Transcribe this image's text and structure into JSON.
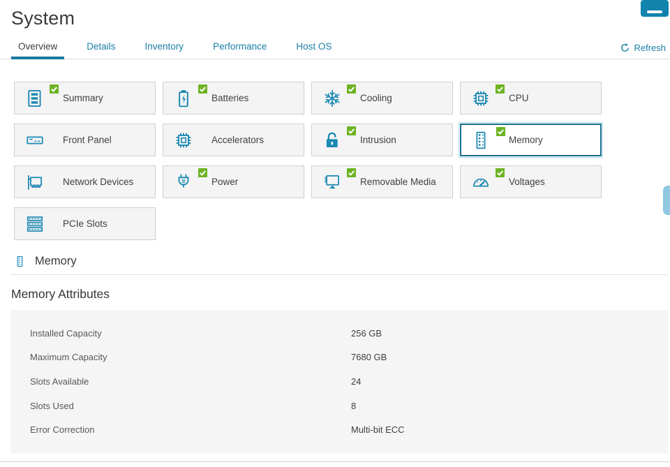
{
  "page": {
    "title": "System"
  },
  "header": {
    "menu_icon": "hamburger-icon",
    "refresh_label": "Refresh",
    "refresh_icon": "refresh-icon"
  },
  "tabs": [
    {
      "label": "Overview",
      "active": true
    },
    {
      "label": "Details",
      "active": false
    },
    {
      "label": "Inventory",
      "active": false
    },
    {
      "label": "Performance",
      "active": false
    },
    {
      "label": "Host OS",
      "active": false
    }
  ],
  "tiles": [
    {
      "label": "Summary",
      "icon": "summary-icon",
      "status_ok": true,
      "selected": false
    },
    {
      "label": "Batteries",
      "icon": "battery-icon",
      "status_ok": true,
      "selected": false
    },
    {
      "label": "Cooling",
      "icon": "snowflake-icon",
      "status_ok": true,
      "selected": false
    },
    {
      "label": "CPU",
      "icon": "cpu-icon",
      "status_ok": true,
      "selected": false
    },
    {
      "label": "Front Panel",
      "icon": "front-panel-icon",
      "status_ok": false,
      "selected": false
    },
    {
      "label": "Accelerators",
      "icon": "chip-icon",
      "status_ok": false,
      "selected": false
    },
    {
      "label": "Intrusion",
      "icon": "lock-icon",
      "status_ok": true,
      "selected": false
    },
    {
      "label": "Memory",
      "icon": "memory-icon",
      "status_ok": true,
      "selected": true
    },
    {
      "label": "Network Devices",
      "icon": "network-icon",
      "status_ok": false,
      "selected": false
    },
    {
      "label": "Power",
      "icon": "plug-icon",
      "status_ok": true,
      "selected": false
    },
    {
      "label": "Removable Media",
      "icon": "media-icon",
      "status_ok": true,
      "selected": false
    },
    {
      "label": "Voltages",
      "icon": "gauge-icon",
      "status_ok": true,
      "selected": false
    },
    {
      "label": "PCIe Slots",
      "icon": "pcie-icon",
      "status_ok": false,
      "selected": false
    }
  ],
  "section": {
    "title": "Memory",
    "icon": "memory-icon"
  },
  "attributes": {
    "title": "Memory Attributes",
    "rows": [
      {
        "label": "Installed Capacity",
        "value": "256 GB"
      },
      {
        "label": "Maximum Capacity",
        "value": "7680 GB"
      },
      {
        "label": "Slots Available",
        "value": "24"
      },
      {
        "label": "Slots Used",
        "value": "8"
      },
      {
        "label": "Error Correction",
        "value": "Multi-bit ECC"
      }
    ]
  },
  "colors": {
    "accent": "#1a7ea6",
    "icon_teal": "#1c89b3",
    "check_green": "#6db324",
    "selected_border": "#17708f",
    "tile_background": "#f4f4f4",
    "panel_background": "#f5f5f5"
  }
}
